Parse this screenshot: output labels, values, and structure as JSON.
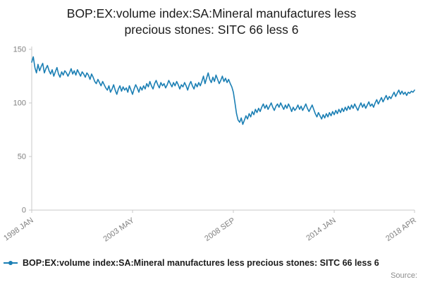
{
  "title": "BOP:EX:volume index:SA:Mineral manufactures less precious stones: SITC 66 less 6",
  "legend": {
    "label": "BOP:EX:volume index:SA:Mineral manufactures less precious stones: SITC 66 less 6"
  },
  "source_label": "Source:",
  "chart_data": {
    "type": "line",
    "title": "BOP:EX:volume index:SA:Mineral manufactures less precious stones: SITC 66 less 6",
    "xlabel": "",
    "ylabel": "",
    "x_start": "1998 JAN",
    "x_end": "2018 APR",
    "frequency": "monthly",
    "x_tick_labels": [
      "1998 JAN",
      "2003 MAY",
      "2008 SEP",
      "2014 JAN",
      "2018 APR"
    ],
    "x_tick_indices": [
      0,
      64,
      128,
      192,
      243
    ],
    "y_ticks": [
      0,
      50,
      100,
      150
    ],
    "ylim": [
      0,
      150
    ],
    "grid": false,
    "legend_position": "bottom-left",
    "line_color": "#1b7fb4",
    "axis_color": "#c9c9c9",
    "tick_label_color": "#7f7f7f",
    "series": [
      {
        "name": "BOP:EX:volume index:SA:Mineral manufactures less precious stones: SITC 66 less 6",
        "values": [
          138,
          143,
          133,
          128,
          136,
          130,
          134,
          137,
          128,
          132,
          135,
          130,
          127,
          131,
          125,
          129,
          133,
          127,
          124,
          129,
          126,
          130,
          128,
          125,
          128,
          132,
          127,
          130,
          126,
          131,
          128,
          125,
          129,
          127,
          124,
          128,
          126,
          122,
          127,
          124,
          120,
          118,
          122,
          119,
          116,
          120,
          117,
          114,
          112,
          116,
          110,
          113,
          117,
          112,
          108,
          113,
          116,
          111,
          115,
          112,
          114,
          110,
          116,
          112,
          108,
          113,
          117,
          114,
          110,
          115,
          112,
          116,
          113,
          118,
          115,
          120,
          116,
          113,
          118,
          121,
          117,
          114,
          119,
          116,
          118,
          114,
          117,
          121,
          118,
          115,
          119,
          116,
          120,
          117,
          113,
          117,
          115,
          119,
          116,
          112,
          117,
          120,
          116,
          113,
          118,
          115,
          119,
          116,
          120,
          125,
          118,
          123,
          128,
          122,
          119,
          124,
          120,
          126,
          122,
          118,
          121,
          125,
          120,
          123,
          119,
          122,
          118,
          115,
          110,
          100,
          90,
          84,
          82,
          86,
          80,
          84,
          88,
          85,
          90,
          87,
          92,
          89,
          94,
          91,
          95,
          92,
          96,
          99,
          95,
          98,
          94,
          97,
          100,
          96,
          93,
          97,
          99,
          96,
          100,
          97,
          94,
          98,
          95,
          99,
          96,
          92,
          96,
          93,
          95,
          98,
          94,
          97,
          93,
          96,
          99,
          95,
          92,
          95,
          98,
          94,
          90,
          87,
          91,
          88,
          85,
          89,
          86,
          90,
          87,
          91,
          88,
          92,
          89,
          93,
          90,
          94,
          91,
          95,
          92,
          96,
          93,
          97,
          94,
          98,
          95,
          99,
          96,
          93,
          97,
          100,
          96,
          99,
          95,
          98,
          101,
          97,
          99,
          96,
          100,
          103,
          99,
          102,
          105,
          101,
          104,
          107,
          103,
          106,
          104,
          107,
          110,
          106,
          109,
          112,
          108,
          111,
          108,
          110,
          107,
          110,
          109,
          111,
          110,
          112
        ]
      }
    ]
  }
}
